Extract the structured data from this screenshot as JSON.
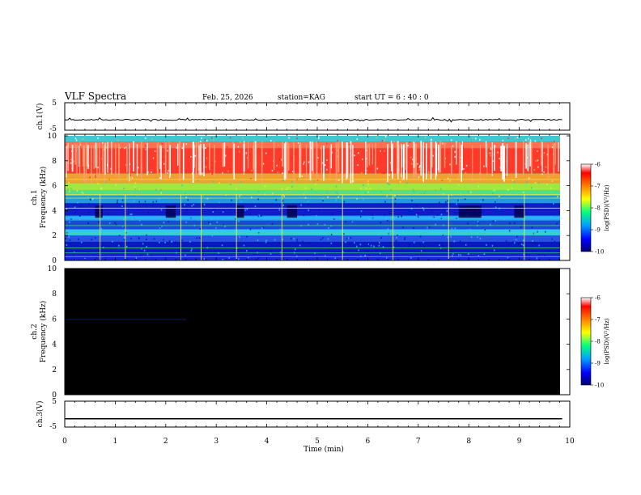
{
  "header": {
    "title": "VLF Spectra",
    "date": "Feb. 25, 2026",
    "station": "station=KAG",
    "start": "start  UT =   6 : 40 : 0"
  },
  "chart_data": {
    "type": "heatmap",
    "x_axis": {
      "label": "Time (min)",
      "range": [
        0,
        10
      ],
      "ticks": [
        "0",
        "1",
        "2",
        "3",
        "4",
        "5",
        "6",
        "7",
        "8",
        "9",
        "10"
      ],
      "data_end": 9.85
    },
    "panels": [
      {
        "id": "ch1-waveform",
        "ylabel": "ch.1(V)",
        "ylim": [
          -5,
          5
        ],
        "yticks": [
          "5",
          "-5"
        ],
        "trace_level": -1.2
      },
      {
        "id": "ch1-spectrogram",
        "ylabel_line1": "ch.1",
        "ylabel_line2": "Frequency (kHz)",
        "ylim": [
          0,
          10
        ],
        "yticks": [
          "0",
          "2",
          "4",
          "6",
          "8",
          "10"
        ],
        "bands": [
          {
            "from": 0,
            "to": 0.5,
            "color": "#1428d8"
          },
          {
            "from": 0.5,
            "to": 1.5,
            "color": "#0a18c0"
          },
          {
            "from": 1.5,
            "to": 2.0,
            "color": "#2a52e0"
          },
          {
            "from": 2.0,
            "to": 2.5,
            "color": "#30c8f0"
          },
          {
            "from": 2.5,
            "to": 3.2,
            "color": "#1b4ad8"
          },
          {
            "from": 3.2,
            "to": 3.6,
            "color": "#22a8ec"
          },
          {
            "from": 3.6,
            "to": 4.6,
            "color": "#0d1ec8"
          },
          {
            "from": 4.6,
            "to": 5.2,
            "color": "#1e9ae0"
          },
          {
            "from": 5.2,
            "to": 5.6,
            "color": "#50e090"
          },
          {
            "from": 5.6,
            "to": 6.2,
            "color": "#a0e840"
          },
          {
            "from": 6.2,
            "to": 7.0,
            "color": "#f0a030"
          },
          {
            "from": 7.0,
            "to": 9.0,
            "color": "#ff3a2a"
          },
          {
            "from": 9.0,
            "to": 9.5,
            "color": "#ff7050"
          },
          {
            "from": 9.5,
            "to": 10.0,
            "color": "#40c8d0"
          }
        ],
        "lines_kHz": [
          0.3,
          0.6,
          1.0,
          2.2,
          2.8,
          3.4,
          4.2,
          5.0,
          5.3,
          6.5
        ],
        "dark_patches": [
          {
            "t": 0.6,
            "w": 0.15
          },
          {
            "t": 2.0,
            "w": 0.2
          },
          {
            "t": 3.4,
            "w": 0.15
          },
          {
            "t": 4.4,
            "w": 0.2
          },
          {
            "t": 7.8,
            "w": 0.45
          },
          {
            "t": 8.9,
            "w": 0.2
          }
        ],
        "colorbar": {
          "label": "log(PSD)(V²/Hz)",
          "ticks": [
            "-6",
            "-7",
            "-8",
            "-9",
            "-10"
          ]
        }
      },
      {
        "id": "ch2-spectrogram",
        "ylabel_line1": "ch.2",
        "ylabel_line2": "Frequency (kHz)",
        "ylim": [
          0,
          10
        ],
        "yticks": [
          "0",
          "2",
          "4",
          "6",
          "8",
          "10"
        ],
        "fill": "#000000",
        "colorbar": {
          "label": "log(PSD)(V²/Hz)",
          "ticks": [
            "-6",
            "-7",
            "-8",
            "-9",
            "-10"
          ]
        }
      },
      {
        "id": "ch3-waveform",
        "ylabel": "ch.3(V)",
        "ylim": [
          -5,
          5
        ],
        "yticks": [
          "5",
          "-5"
        ],
        "trace_level": -1.8
      }
    ],
    "colormap": [
      "#000070",
      "#0000ff",
      "#00a0ff",
      "#00ff80",
      "#ffff00",
      "#ff8000",
      "#ff0000",
      "#ffffff"
    ]
  }
}
